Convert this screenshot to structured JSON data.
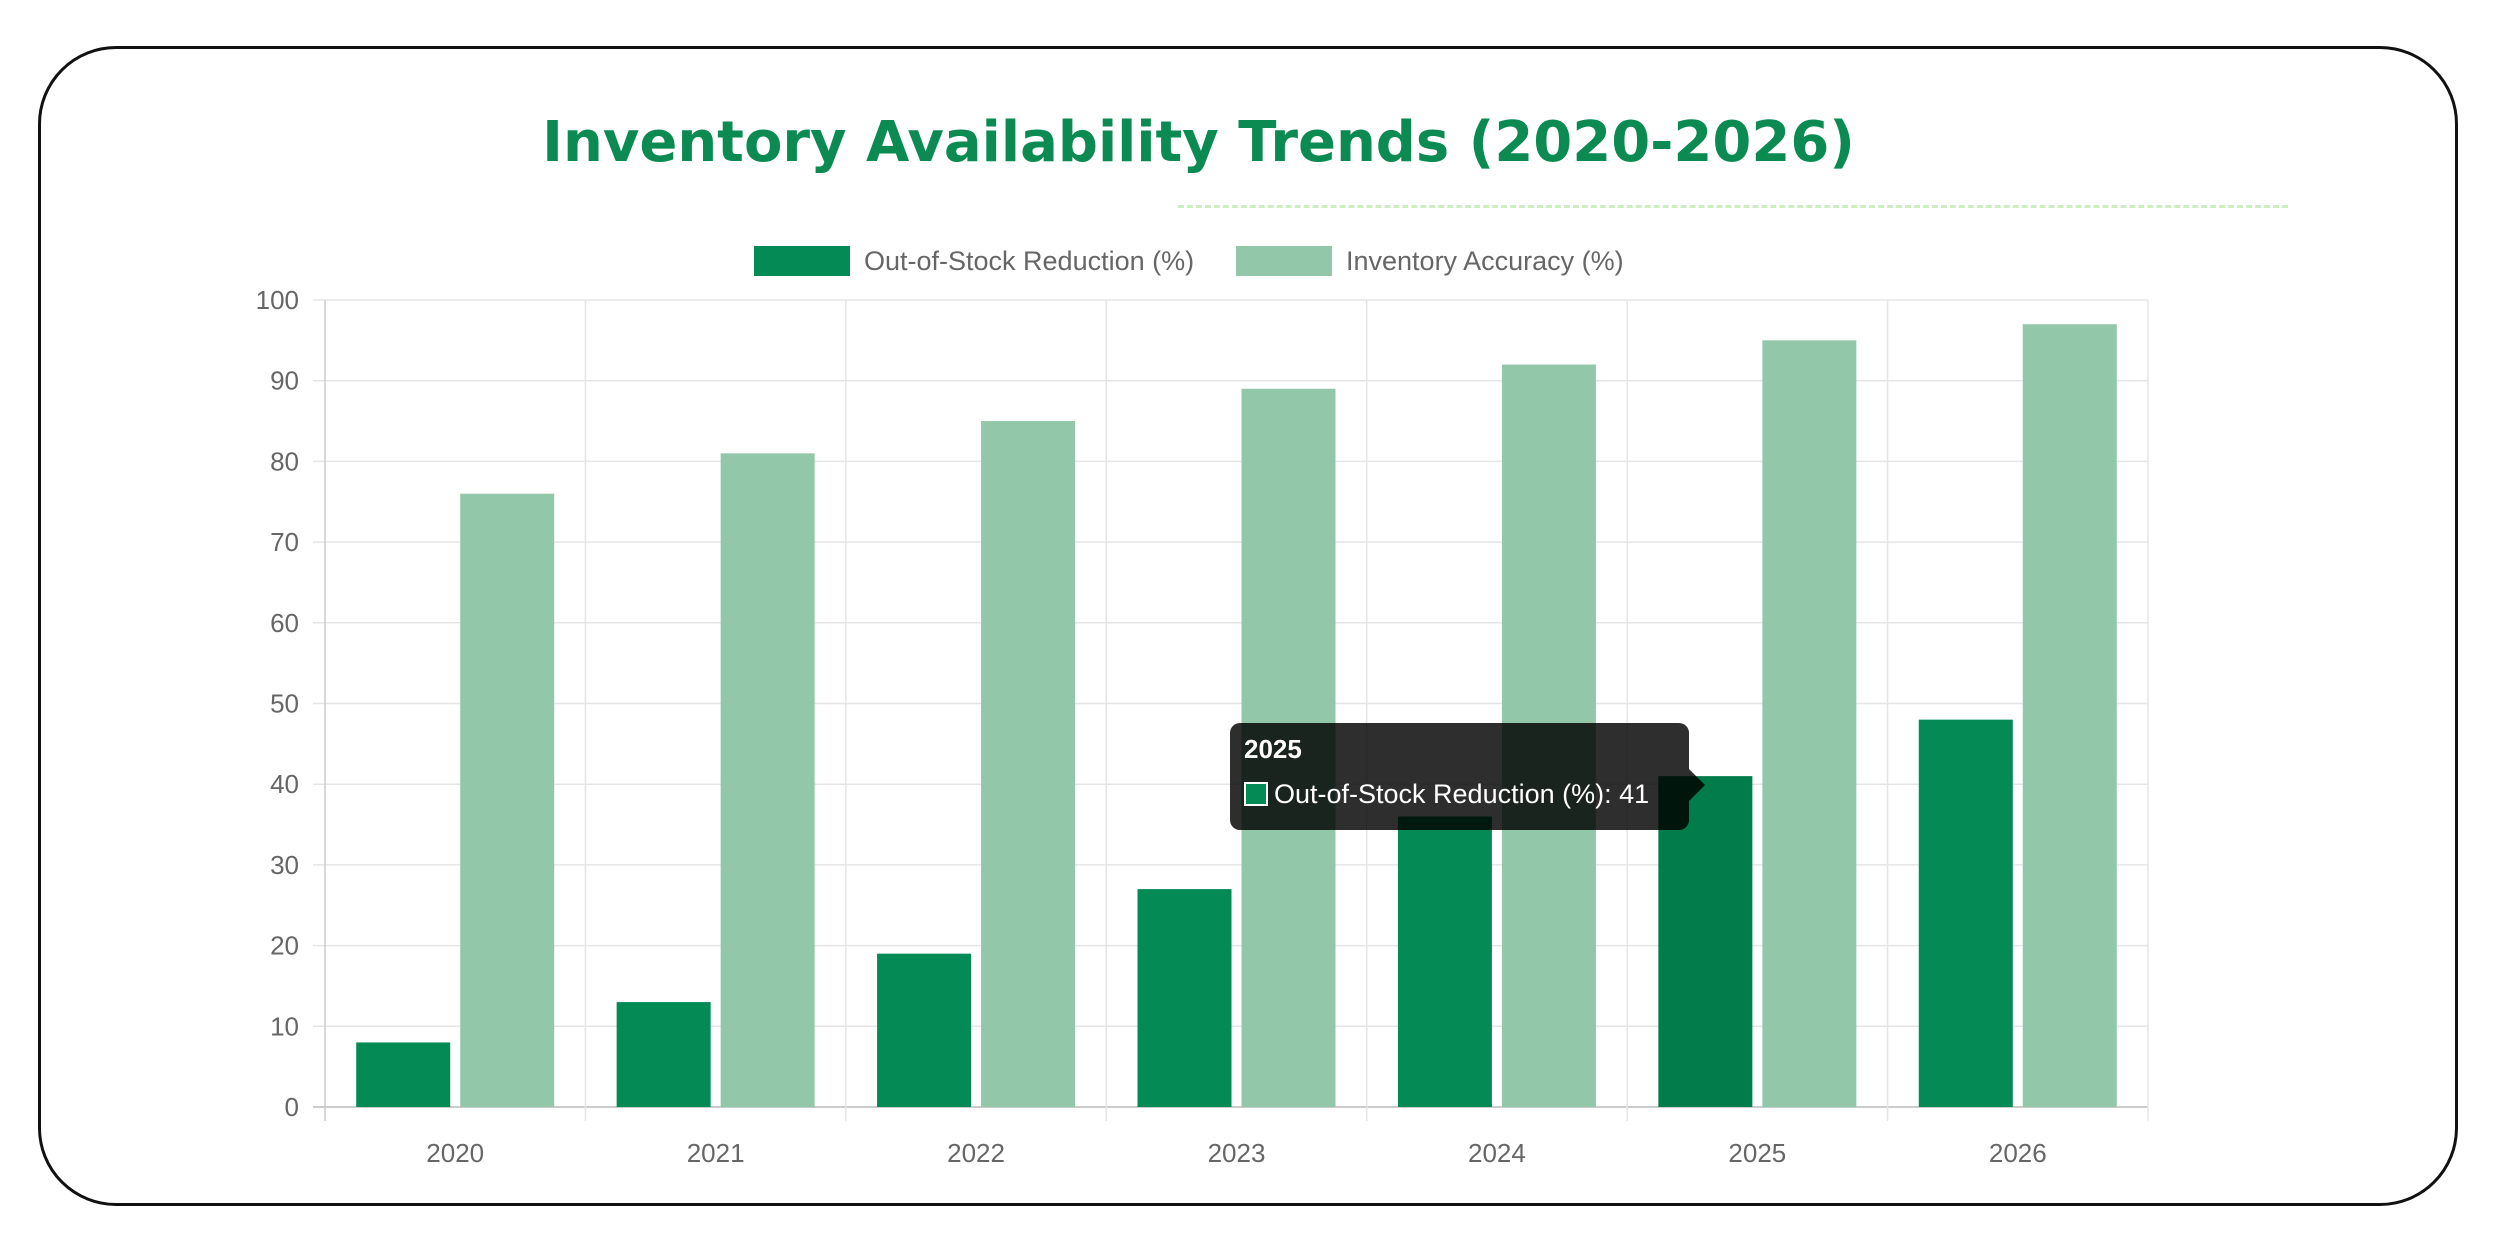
{
  "chart_data": {
    "type": "bar",
    "title": "Inventory Availability Trends (2020-2026)",
    "categories": [
      "2020",
      "2021",
      "2022",
      "2023",
      "2024",
      "2025",
      "2026"
    ],
    "series": [
      {
        "name": "Out-of-Stock Reduction (%)",
        "color": "#038a55",
        "hover_color": "#027c4b",
        "values": [
          8,
          13,
          19,
          27,
          36,
          41,
          48
        ]
      },
      {
        "name": "Inventory Accuracy (%)",
        "color": "#93c7aa",
        "values": [
          76,
          81,
          85,
          89,
          92,
          95,
          97
        ]
      }
    ],
    "ylim": [
      0,
      100
    ],
    "yticks": [
      0,
      10,
      20,
      30,
      40,
      50,
      60,
      70,
      80,
      90,
      100
    ],
    "grid": true,
    "legend": "top-center"
  },
  "tooltip": {
    "title": "2025",
    "label": "Out-of-Stock Reduction (%): 41",
    "color": "#038a55"
  },
  "colors": {
    "title": "#0b8a52",
    "grid": "#e5e5e5",
    "axis_text": "#666666"
  }
}
